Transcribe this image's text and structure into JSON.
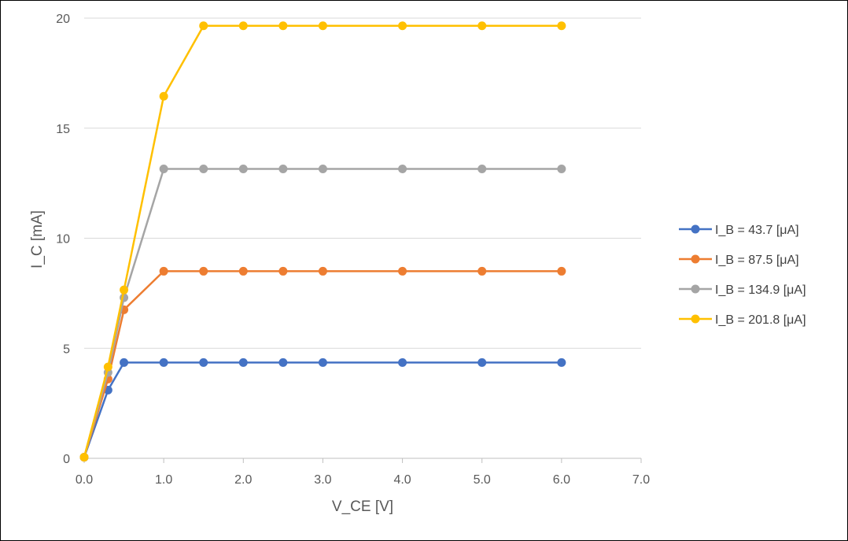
{
  "chart_data": {
    "type": "scatter",
    "title": "",
    "xlabel": "V_CE [V]",
    "ylabel": "I_C [mA]",
    "xlim": [
      0,
      7
    ],
    "ylim": [
      0,
      20
    ],
    "x_ticks": [
      0,
      1,
      2,
      3,
      4,
      5,
      6,
      7
    ],
    "x_tick_labels": [
      "0.0",
      "1.0",
      "2.0",
      "3.0",
      "4.0",
      "5.0",
      "6.0",
      "7.0"
    ],
    "y_ticks": [
      0,
      5,
      10,
      15,
      20
    ],
    "y_tick_labels": [
      "0",
      "5",
      "10",
      "15",
      "20"
    ],
    "grid": "horizontal",
    "legend_position": "right",
    "markers": true,
    "lines": true,
    "series": [
      {
        "name": "I_B = 43.7 [μA]",
        "color": "#4472C4",
        "x": [
          0,
          0.3,
          0.5,
          1.0,
          1.5,
          2.0,
          2.5,
          3.0,
          4.0,
          5.0,
          6.0
        ],
        "y": [
          0.05,
          3.1,
          4.35,
          4.35,
          4.35,
          4.35,
          4.35,
          4.35,
          4.35,
          4.35,
          4.35
        ]
      },
      {
        "name": "I_B = 87.5 [μA]",
        "color": "#ED7D31",
        "x": [
          0,
          0.3,
          0.5,
          1.0,
          1.5,
          2.0,
          2.5,
          3.0,
          4.0,
          5.0,
          6.0
        ],
        "y": [
          0.05,
          3.6,
          6.75,
          8.5,
          8.5,
          8.5,
          8.5,
          8.5,
          8.5,
          8.5,
          8.5
        ]
      },
      {
        "name": "I_B = 134.9 [μA]",
        "color": "#A5A5A5",
        "x": [
          0,
          0.3,
          0.5,
          1.0,
          1.5,
          2.0,
          2.5,
          3.0,
          4.0,
          5.0,
          6.0
        ],
        "y": [
          0.05,
          3.9,
          7.3,
          13.15,
          13.15,
          13.15,
          13.15,
          13.15,
          13.15,
          13.15,
          13.15
        ]
      },
      {
        "name": "I_B = 201.8 [μA]",
        "color": "#FFC000",
        "x": [
          0,
          0.3,
          0.5,
          1.0,
          1.5,
          2.0,
          2.5,
          3.0,
          4.0,
          5.0,
          6.0
        ],
        "y": [
          0.05,
          4.15,
          7.65,
          16.45,
          19.65,
          19.65,
          19.65,
          19.65,
          19.65,
          19.65,
          19.65
        ]
      }
    ]
  }
}
